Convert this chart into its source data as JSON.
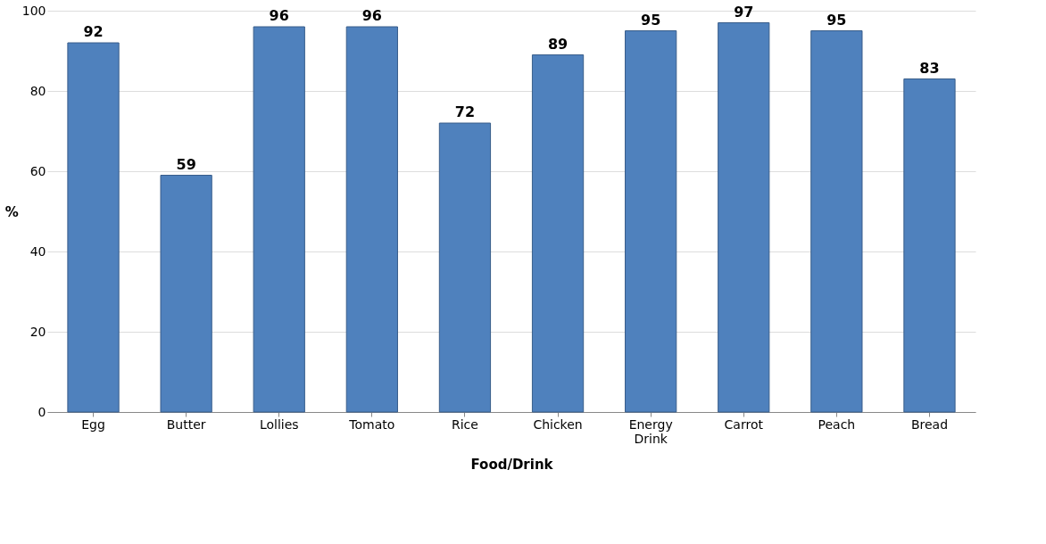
{
  "chart_data": {
    "type": "bar",
    "xlabel": "Food/Drink",
    "ylabel": "%",
    "categories": [
      "Egg",
      "Butter",
      "Lollies",
      "Tomato",
      "Rice",
      "Chicken",
      "Energy Drink",
      "Carrot",
      "Peach",
      "Bread"
    ],
    "values": [
      92,
      59,
      96,
      96,
      72,
      89,
      95,
      97,
      95,
      83
    ],
    "color": "#4f81bd",
    "ylim": [
      0,
      100
    ],
    "yticks": [
      0,
      20,
      40,
      60,
      80,
      100
    ],
    "grid": "y",
    "data_labels": true
  }
}
